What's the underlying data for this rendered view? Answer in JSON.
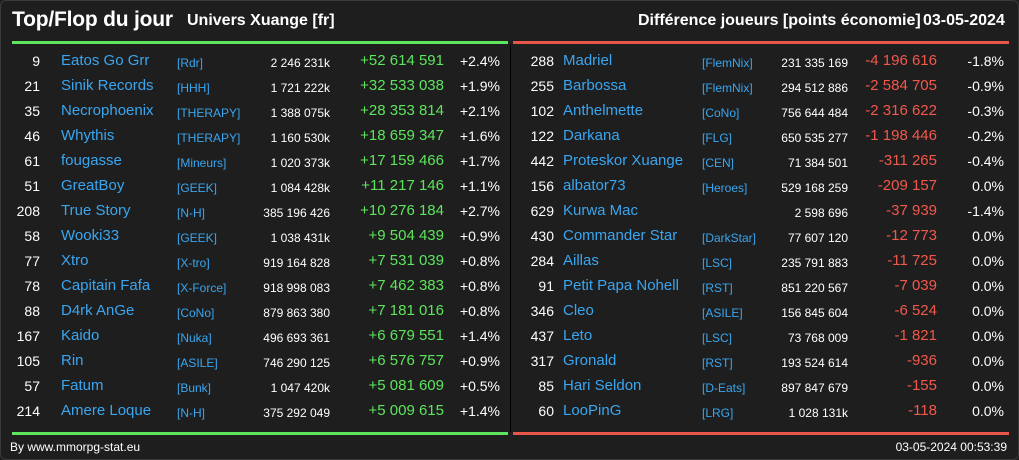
{
  "header": {
    "title": "Top/Flop du jour",
    "universe": "Univers Xuange [fr]",
    "metric": "Différence joueurs [points économie]",
    "date": "03-05-2024"
  },
  "colors": {
    "gain": "#5de55d",
    "loss": "#f2584b",
    "link": "#3aa6f0",
    "background": "#1e1e1e"
  },
  "top": [
    {
      "rank": "9",
      "name": "Eatos Go Grr",
      "tag": "[Rdr]",
      "points": "2 246 231k",
      "diff": "+52 614 591",
      "pct": "+2.4%"
    },
    {
      "rank": "21",
      "name": "Sinik Records",
      "tag": "[HHH]",
      "points": "1 721 222k",
      "diff": "+32 533 038",
      "pct": "+1.9%"
    },
    {
      "rank": "35",
      "name": "Necrophoenix",
      "tag": "[THERAPY]",
      "points": "1 388 075k",
      "diff": "+28 353 814",
      "pct": "+2.1%"
    },
    {
      "rank": "46",
      "name": "Whythis",
      "tag": "[THERAPY]",
      "points": "1 160 530k",
      "diff": "+18 659 347",
      "pct": "+1.6%"
    },
    {
      "rank": "61",
      "name": "fougasse",
      "tag": "[Mineurs]",
      "points": "1 020 373k",
      "diff": "+17 159 466",
      "pct": "+1.7%"
    },
    {
      "rank": "51",
      "name": "GreatBoy",
      "tag": "[GEEK]",
      "points": "1 084 428k",
      "diff": "+11 217 146",
      "pct": "+1.1%"
    },
    {
      "rank": "208",
      "name": "True Story",
      "tag": "[N-H]",
      "points": "385 196 426",
      "diff": "+10 276 184",
      "pct": "+2.7%"
    },
    {
      "rank": "58",
      "name": "Wooki33",
      "tag": "[GEEK]",
      "points": "1 038 431k",
      "diff": "+9 504 439",
      "pct": "+0.9%"
    },
    {
      "rank": "77",
      "name": "Xtro",
      "tag": "[X-tro]",
      "points": "919 164 828",
      "diff": "+7 531 039",
      "pct": "+0.8%"
    },
    {
      "rank": "78",
      "name": "Capitain Fafa",
      "tag": "[X-Force]",
      "points": "918 998 083",
      "diff": "+7 462 383",
      "pct": "+0.8%"
    },
    {
      "rank": "88",
      "name": "D4rk AnGe",
      "tag": "[CoNo]",
      "points": "879 863 380",
      "diff": "+7 181 016",
      "pct": "+0.8%"
    },
    {
      "rank": "167",
      "name": "Kaido",
      "tag": "[Nuka]",
      "points": "496 693 361",
      "diff": "+6 679 551",
      "pct": "+1.4%"
    },
    {
      "rank": "105",
      "name": "Rin",
      "tag": "[ASILE]",
      "points": "746 290 125",
      "diff": "+6 576 757",
      "pct": "+0.9%"
    },
    {
      "rank": "57",
      "name": "Fatum",
      "tag": "[Bunk]",
      "points": "1 047 420k",
      "diff": "+5 081 609",
      "pct": "+0.5%"
    },
    {
      "rank": "214",
      "name": "Amere Loque",
      "tag": "[N-H]",
      "points": "375 292 049",
      "diff": "+5 009 615",
      "pct": "+1.4%"
    }
  ],
  "flop": [
    {
      "rank": "288",
      "name": "Madriel",
      "tag": "[FlemNix]",
      "points": "231 335 169",
      "diff": "-4 196 616",
      "pct": "-1.8%"
    },
    {
      "rank": "255",
      "name": "Barbossa",
      "tag": "[FlemNix]",
      "points": "294 512 886",
      "diff": "-2 584 705",
      "pct": "-0.9%"
    },
    {
      "rank": "102",
      "name": "Anthelmette",
      "tag": "[CoNo]",
      "points": "756 644 484",
      "diff": "-2 316 622",
      "pct": "-0.3%"
    },
    {
      "rank": "122",
      "name": "Darkana",
      "tag": "[FLG]",
      "points": "650 535 277",
      "diff": "-1 198 446",
      "pct": "-0.2%"
    },
    {
      "rank": "442",
      "name": "Proteskor Xuange",
      "tag": "[CEN]",
      "points": "71 384 501",
      "diff": "-311 265",
      "pct": "-0.4%"
    },
    {
      "rank": "156",
      "name": "albator73",
      "tag": "[Heroes]",
      "points": "529 168 259",
      "diff": "-209 157",
      "pct": "0.0%"
    },
    {
      "rank": "629",
      "name": "Kurwa Mac",
      "tag": "",
      "points": "2 598 696",
      "diff": "-37 939",
      "pct": "-1.4%"
    },
    {
      "rank": "430",
      "name": "Commander Star",
      "tag": "[DarkStar]",
      "points": "77 607 120",
      "diff": "-12 773",
      "pct": "0.0%"
    },
    {
      "rank": "284",
      "name": "Aillas",
      "tag": "[LSC]",
      "points": "235 791 883",
      "diff": "-11 725",
      "pct": "0.0%"
    },
    {
      "rank": "91",
      "name": "Petit Papa Nohell",
      "tag": "[RST]",
      "points": "851 220 567",
      "diff": "-7 039",
      "pct": "0.0%"
    },
    {
      "rank": "346",
      "name": "Cleo",
      "tag": "[ASILE]",
      "points": "156 845 604",
      "diff": "-6 524",
      "pct": "0.0%"
    },
    {
      "rank": "437",
      "name": "Leto",
      "tag": "[LSC]",
      "points": "73 768 009",
      "diff": "-1 821",
      "pct": "0.0%"
    },
    {
      "rank": "317",
      "name": "Gronald",
      "tag": "[RST]",
      "points": "193 524 614",
      "diff": "-936",
      "pct": "0.0%"
    },
    {
      "rank": "85",
      "name": "Hari Seldon",
      "tag": "[D-Eats]",
      "points": "897 847 679",
      "diff": "-155",
      "pct": "0.0%"
    },
    {
      "rank": "60",
      "name": "LooPinG",
      "tag": "[LRG]",
      "points": "1 028 131k",
      "diff": "-118",
      "pct": "0.0%"
    }
  ],
  "footer": {
    "credit": "By www.mmorpg-stat.eu",
    "timestamp": "03-05-2024 00:53:39"
  }
}
